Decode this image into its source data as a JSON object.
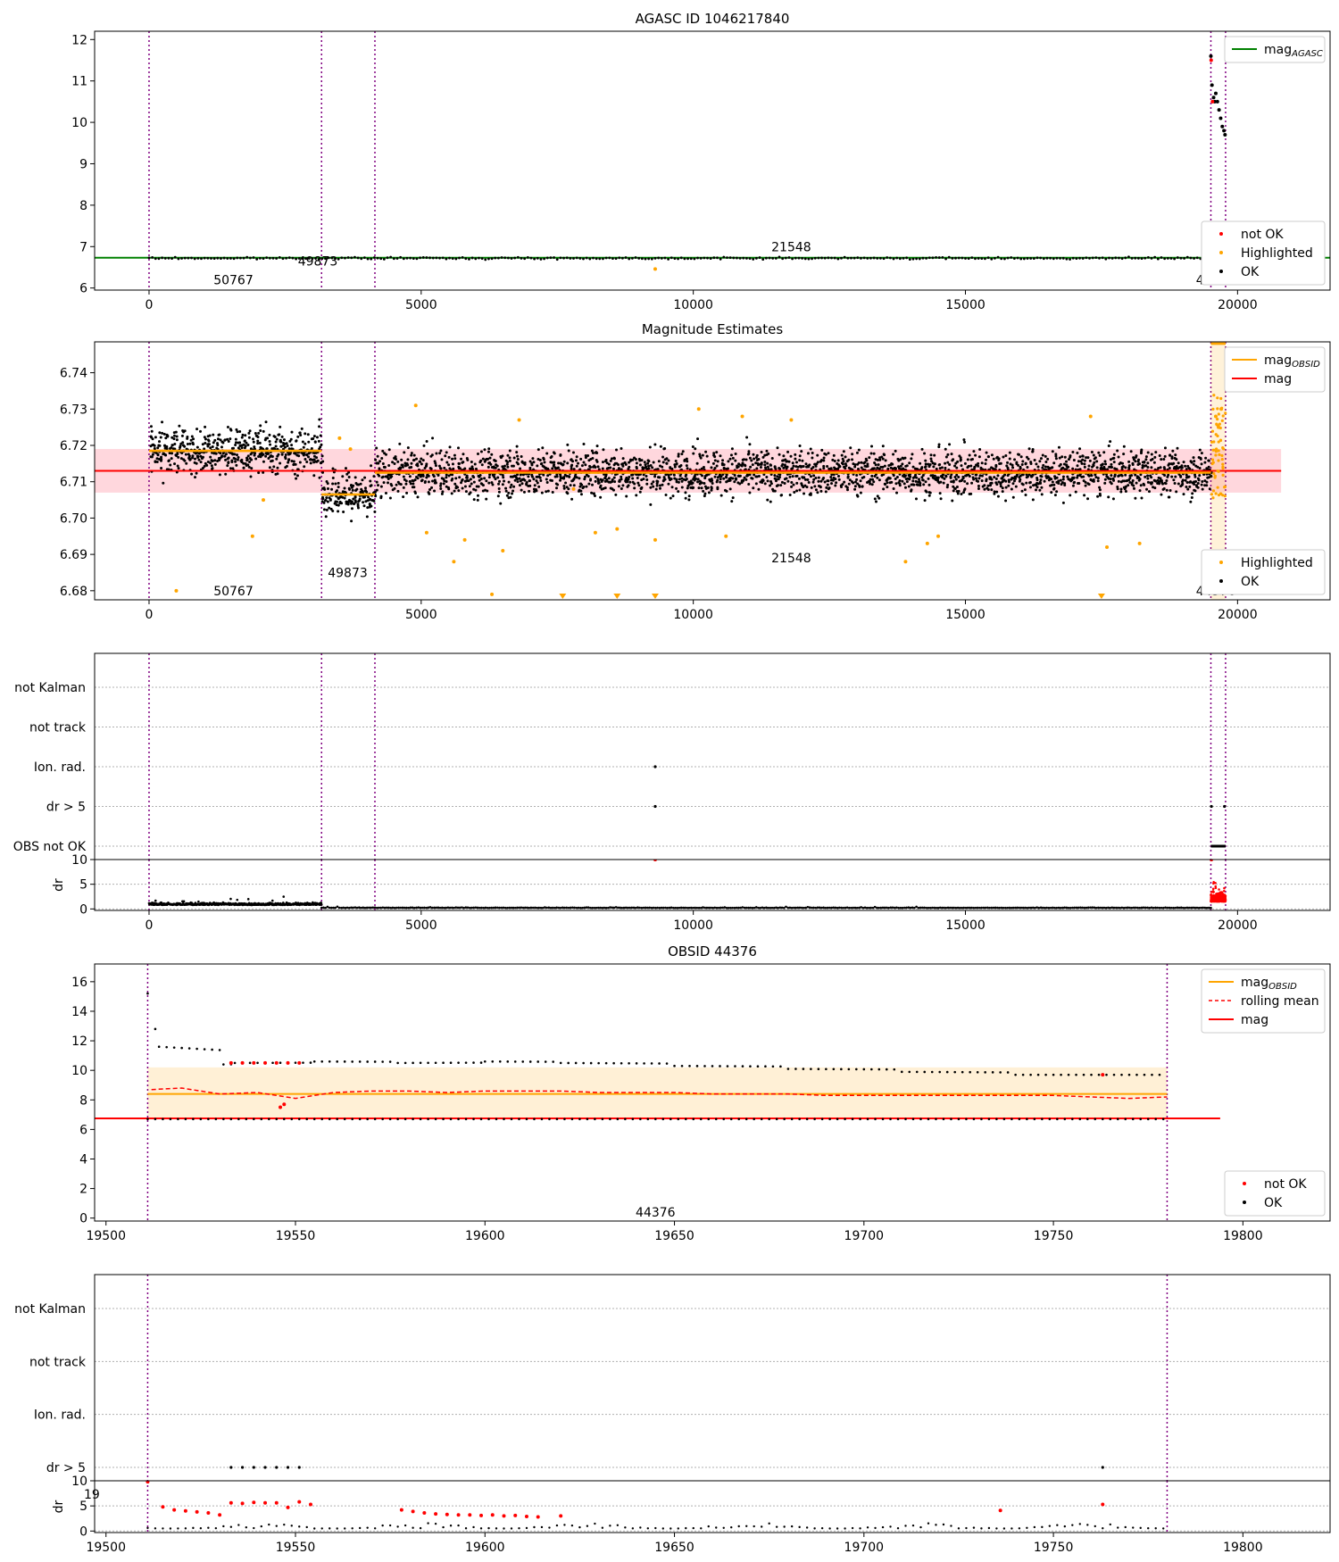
{
  "chart_data": [
    {
      "id": "agasc",
      "type": "scatter",
      "title": "AGASC ID 1046217840",
      "xlim": [
        -1000,
        21700
      ],
      "ylim": [
        5.95,
        12.2
      ],
      "xticks": [
        0,
        5000,
        10000,
        15000,
        20000
      ],
      "yticks": [
        6,
        7,
        8,
        9,
        10,
        11,
        12
      ],
      "grid": false,
      "vlines": [
        0,
        3170,
        4150,
        19510,
        19780
      ],
      "obsid_labels": [
        {
          "text": "50767",
          "x": 1550,
          "y": 6.2
        },
        {
          "text": "49873",
          "x": 3100,
          "y": 6.65
        },
        {
          "text": "21548",
          "x": 11800,
          "y": 7.0
        },
        {
          "text": "44376",
          "x": 19600,
          "y": 6.2
        }
      ],
      "series": [
        {
          "name": "mag",
          "sub": "AGASC",
          "kind": "line",
          "color": "#008000",
          "x": [
            -1000,
            21700
          ],
          "y": [
            6.73,
            6.73
          ]
        },
        {
          "name": "OK",
          "kind": "band",
          "color": "#000000",
          "x": [
            0,
            19780
          ],
          "y": [
            6.72,
            6.72
          ],
          "spread": 0.04
        },
        {
          "name": "OK",
          "kind": "points",
          "color": "#000000",
          "x": [
            19510,
            19530,
            19560,
            19580,
            19600,
            19630,
            19660,
            19690,
            19720,
            19750,
            19770
          ],
          "y": [
            11.6,
            10.9,
            10.6,
            10.5,
            10.7,
            10.5,
            10.3,
            10.1,
            9.9,
            9.8,
            9.7
          ]
        },
        {
          "name": "not OK",
          "kind": "points",
          "color": "#ff0000",
          "x": [
            19515,
            19540
          ],
          "y": [
            11.5,
            10.5
          ]
        },
        {
          "name": "Highlighted",
          "kind": "points",
          "color": "#ffa500",
          "x": [
            9300
          ],
          "y": [
            6.46
          ]
        }
      ],
      "legends": [
        {
          "position": "upper right",
          "entries": [
            {
              "label": "mag",
              "sub": "AGASC",
              "color": "#008000",
              "marker": "line"
            }
          ]
        },
        {
          "position": "lower right",
          "entries": [
            {
              "label": "not OK",
              "color": "#ff0000",
              "marker": "dot"
            },
            {
              "label": "Highlighted",
              "color": "#ffa500",
              "marker": "dot"
            },
            {
              "label": "OK",
              "color": "#000000",
              "marker": "dot"
            }
          ]
        }
      ]
    },
    {
      "id": "estimates",
      "type": "scatter",
      "title": "Magnitude Estimates",
      "xlim": [
        -1000,
        21700
      ],
      "ylim": [
        6.6775,
        6.7485
      ],
      "xticks": [
        0,
        5000,
        10000,
        15000,
        20000
      ],
      "yticks": [
        6.68,
        6.69,
        6.7,
        6.71,
        6.72,
        6.73,
        6.74
      ],
      "ytick_labels": [
        "6.68",
        "6.69",
        "6.70",
        "6.71",
        "6.72",
        "6.73",
        "6.74"
      ],
      "grid": false,
      "vlines": [
        0,
        3170,
        4150,
        19510,
        19780
      ],
      "band": {
        "x": [
          -1000,
          20800
        ],
        "y": [
          6.707,
          6.719
        ],
        "color": "#ffb6c1"
      },
      "obsid_labels": [
        {
          "text": "50767",
          "x": 1550,
          "y": 6.68
        },
        {
          "text": "49873",
          "x": 3650,
          "y": 6.685
        },
        {
          "text": "21548",
          "x": 11800,
          "y": 6.689
        },
        {
          "text": "44376",
          "x": 19600,
          "y": 6.68
        }
      ],
      "segments": [
        {
          "x": [
            0,
            3170
          ],
          "mean": 6.7185,
          "spread": 0.011
        },
        {
          "x": [
            3170,
            4150
          ],
          "mean": 6.7065,
          "spread": 0.011
        },
        {
          "x": [
            4150,
            19510
          ],
          "mean": 6.7125,
          "spread": 0.011
        }
      ],
      "series": [
        {
          "name": "mag",
          "sub": "OBSID",
          "kind": "steps",
          "color": "#ffa500",
          "x": [
            [
              0,
              3170
            ],
            [
              3170,
              4150
            ],
            [
              4150,
              19510
            ],
            [
              19510,
              19780
            ]
          ],
          "y": [
            6.7185,
            6.7065,
            6.7125,
            6.748
          ]
        },
        {
          "name": "mag",
          "kind": "line",
          "color": "#ff0000",
          "x": [
            -1000,
            20800
          ],
          "y": [
            6.713,
            6.713
          ]
        },
        {
          "name": "Highlighted",
          "kind": "points",
          "color": "#ffa500",
          "x": [
            500,
            1900,
            2100,
            3500,
            3700,
            4900,
            5100,
            5600,
            5800,
            6300,
            6500,
            6800,
            7800,
            8200,
            8600,
            9300,
            10100,
            10600,
            10900,
            11800,
            13900,
            14300,
            14500,
            17300,
            17600,
            18200,
            19600,
            19650,
            19700
          ],
          "y": [
            6.68,
            6.695,
            6.705,
            6.722,
            6.719,
            6.731,
            6.696,
            6.688,
            6.694,
            6.679,
            6.691,
            6.727,
            6.708,
            6.696,
            6.697,
            6.694,
            6.73,
            6.695,
            6.728,
            6.727,
            6.688,
            6.693,
            6.695,
            6.728,
            6.692,
            6.693,
            6.728,
            6.725,
            6.73
          ]
        },
        {
          "name": "OBS not OK",
          "kind": "triangles",
          "color": "#ffa500",
          "x": [
            7600,
            8600,
            9300,
            17500
          ],
          "y": [
            6.678,
            6.678,
            6.678,
            6.678
          ]
        }
      ],
      "legends": [
        {
          "position": "upper right",
          "entries": [
            {
              "label": "mag",
              "sub": "OBSID",
              "color": "#ffa500",
              "marker": "line"
            },
            {
              "label": "mag",
              "color": "#ff0000",
              "marker": "line"
            }
          ]
        },
        {
          "position": "lower right",
          "entries": [
            {
              "label": "Highlighted",
              "color": "#ffa500",
              "marker": "dot"
            },
            {
              "label": "OK",
              "color": "#000000",
              "marker": "dot"
            }
          ]
        }
      ]
    },
    {
      "id": "flags1",
      "type": "scatter",
      "title": "",
      "xlim": [
        -1000,
        21700
      ],
      "categories": [
        "not Kalman",
        "not track",
        "Ion. rad.",
        "dr > 5",
        "OBS not OK"
      ],
      "grid": true,
      "vlines": [
        0,
        3170,
        4150,
        19510,
        19780
      ],
      "points": [
        {
          "category": "Ion. rad.",
          "x": 9300,
          "color": "#000000"
        },
        {
          "category": "dr > 5",
          "x": 9300,
          "color": "#000000"
        },
        {
          "category": "dr > 5",
          "x": 19520,
          "color": "#000000"
        },
        {
          "category": "dr > 5",
          "x": 19760,
          "color": "#000000"
        }
      ],
      "spans": [
        {
          "category": "OBS not OK",
          "x": [
            19510,
            19780
          ],
          "color": "#000000"
        }
      ]
    },
    {
      "id": "dr1",
      "type": "scatter",
      "ylabel": "dr",
      "xlim": [
        -1000,
        21700
      ],
      "ylim": [
        -0.3,
        10
      ],
      "xticks": [
        0,
        5000,
        10000,
        15000,
        20000
      ],
      "yticks": [
        0,
        5,
        10
      ],
      "grid": true,
      "vlines": [
        0,
        3170,
        4150,
        19510,
        19780
      ],
      "series": [
        {
          "name": "OK",
          "kind": "noise",
          "color": "#000000",
          "x": [
            0,
            3170
          ],
          "base": 0.8,
          "spread": 1.4
        },
        {
          "name": "OK",
          "kind": "noise",
          "color": "#000000",
          "x": [
            3170,
            19510
          ],
          "base": 0.2,
          "spread": 0.3
        },
        {
          "name": "not OK",
          "kind": "noise",
          "color": "#ff0000",
          "x": [
            19510,
            19780
          ],
          "base": 1.5,
          "spread": 4
        },
        {
          "name": "not OK",
          "kind": "points",
          "color": "#ff0000",
          "x": [
            9300,
            19520
          ],
          "y": [
            10,
            10
          ]
        }
      ]
    },
    {
      "id": "obsid",
      "type": "scatter",
      "title": "OBSID 44376",
      "xlim": [
        19497,
        19823
      ],
      "ylim": [
        -0.2,
        17.2
      ],
      "xticks": [
        19500,
        19550,
        19600,
        19650,
        19700,
        19750,
        19800
      ],
      "yticks": [
        0,
        2,
        4,
        6,
        8,
        10,
        12,
        14,
        16
      ],
      "grid": false,
      "vlines": [
        19511,
        19780
      ],
      "band": {
        "x": [
          19511,
          19780
        ],
        "y": [
          6.7,
          10.2
        ],
        "color": "#ffe4b5"
      },
      "obsid_labels": [
        {
          "text": "44376",
          "x": 19645,
          "y": 0.4
        }
      ],
      "series": [
        {
          "name": "mag",
          "sub": "OBSID",
          "kind": "line",
          "color": "#ffa500",
          "x": [
            19511,
            19780
          ],
          "y": [
            8.4,
            8.4
          ]
        },
        {
          "name": "mag",
          "kind": "line",
          "color": "#ff0000",
          "x": [
            19497,
            19794
          ],
          "y": [
            6.75,
            6.75
          ]
        },
        {
          "name": "rolling mean",
          "kind": "dashed",
          "color": "#ff0000",
          "x": [
            19512,
            19520,
            19530,
            19540,
            19550,
            19560,
            19570,
            19580,
            19590,
            19600,
            19610,
            19620,
            19630,
            19640,
            19650,
            19660,
            19670,
            19680,
            19690,
            19700,
            19710,
            19720,
            19730,
            19740,
            19750,
            19760,
            19770,
            19780
          ],
          "y": [
            8.7,
            8.8,
            8.4,
            8.5,
            8.1,
            8.5,
            8.6,
            8.6,
            8.5,
            8.6,
            8.6,
            8.6,
            8.5,
            8.5,
            8.5,
            8.4,
            8.4,
            8.4,
            8.3,
            8.3,
            8.3,
            8.3,
            8.3,
            8.3,
            8.3,
            8.2,
            8.1,
            8.2
          ]
        },
        {
          "name": "OK",
          "kind": "steps_dots",
          "color": "#000000",
          "x": [
            19511,
            19514,
            19531,
            19534,
            19555,
            19577,
            19600,
            19620,
            19650,
            19680,
            19710,
            19740,
            19780
          ],
          "y": [
            15.2,
            11.6,
            10.4,
            10.5,
            10.6,
            10.5,
            10.6,
            10.5,
            10.3,
            10.1,
            9.9,
            9.7,
            9.7
          ]
        },
        {
          "name": "OK",
          "kind": "row",
          "color": "#000000",
          "x": [
            19511,
            19780
          ],
          "y": [
            6.7,
            6.7
          ]
        },
        {
          "name": "not OK",
          "kind": "points",
          "color": "#ff0000",
          "x": [
            19533,
            19536,
            19539,
            19542,
            19545,
            19548,
            19551,
            19763,
            19546,
            19547
          ],
          "y": [
            10.5,
            10.5,
            10.5,
            10.5,
            10.5,
            10.5,
            10.5,
            9.7,
            7.5,
            7.7
          ]
        }
      ],
      "legends": [
        {
          "position": "upper right",
          "entries": [
            {
              "label": "mag",
              "sub": "OBSID",
              "color": "#ffa500",
              "marker": "line"
            },
            {
              "label": "rolling mean",
              "color": "#ff0000",
              "marker": "dash"
            },
            {
              "label": "mag",
              "color": "#ff0000",
              "marker": "line"
            }
          ]
        },
        {
          "position": "lower right",
          "entries": [
            {
              "label": "not OK",
              "color": "#ff0000",
              "marker": "dot"
            },
            {
              "label": "OK",
              "color": "#000000",
              "marker": "dot"
            }
          ]
        }
      ]
    },
    {
      "id": "flags2",
      "type": "scatter",
      "title": "",
      "xlim": [
        19497,
        19823
      ],
      "categories": [
        "not Kalman",
        "not track",
        "Ion. rad.",
        "dr > 5"
      ],
      "grid": true,
      "vlines": [
        19511,
        19780
      ],
      "points": [
        {
          "category": "dr > 5",
          "x": 19533,
          "color": "#000000"
        },
        {
          "category": "dr > 5",
          "x": 19536,
          "color": "#000000"
        },
        {
          "category": "dr > 5",
          "x": 19539,
          "color": "#000000"
        },
        {
          "category": "dr > 5",
          "x": 19542,
          "color": "#000000"
        },
        {
          "category": "dr > 5",
          "x": 19545,
          "color": "#000000"
        },
        {
          "category": "dr > 5",
          "x": 19548,
          "color": "#000000"
        },
        {
          "category": "dr > 5",
          "x": 19551,
          "color": "#000000"
        },
        {
          "category": "dr > 5",
          "x": 19763,
          "color": "#000000"
        }
      ]
    },
    {
      "id": "dr2",
      "type": "scatter",
      "ylabel": "dr",
      "xlim": [
        19497,
        19823
      ],
      "ylim": [
        -0.3,
        10
      ],
      "xticks": [
        19500,
        19550,
        19600,
        19650,
        19700,
        19750,
        19800
      ],
      "yticks": [
        0,
        5,
        10
      ],
      "grid": true,
      "vlines": [
        19511,
        19780
      ],
      "stray_label": "19",
      "series": [
        {
          "name": "not OK",
          "kind": "points",
          "color": "#ff0000",
          "x": [
            19511,
            19515,
            19518,
            19521,
            19524,
            19527,
            19530,
            19533,
            19536,
            19539,
            19542,
            19545,
            19548,
            19551,
            19554,
            19578,
            19581,
            19584,
            19587,
            19590,
            19593,
            19596,
            19599,
            19602,
            19605,
            19608,
            19611,
            19614,
            19620,
            19736,
            19763
          ],
          "y": [
            9.8,
            4.8,
            4.2,
            4.0,
            3.8,
            3.6,
            3.2,
            5.6,
            5.5,
            5.7,
            5.6,
            5.6,
            4.7,
            5.8,
            5.3,
            4.2,
            3.9,
            3.6,
            3.4,
            3.3,
            3.2,
            3.2,
            3.1,
            3.2,
            3.0,
            3.1,
            2.9,
            2.8,
            3.0,
            4.1,
            5.3
          ]
        },
        {
          "name": "OK",
          "kind": "wave",
          "color": "#000000",
          "x": [
            19511,
            19780
          ],
          "y": [
            0.5,
            1.6
          ]
        }
      ]
    }
  ]
}
